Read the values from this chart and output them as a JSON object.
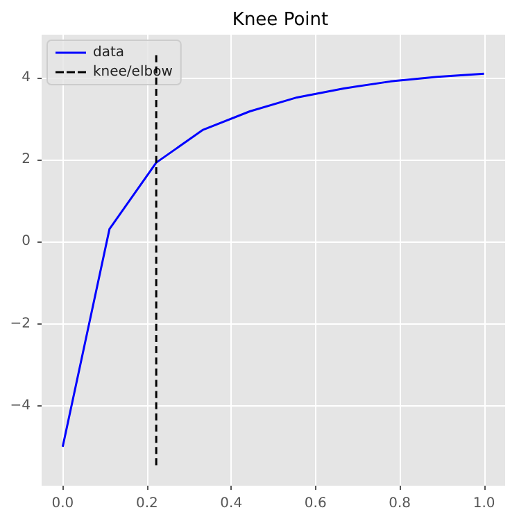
{
  "chart_data": {
    "type": "line",
    "title": "Knee Point",
    "series": [
      {
        "name": "data",
        "color": "#0000ff",
        "line_style": "solid",
        "x": [
          0,
          0.111,
          0.222,
          0.333,
          0.444,
          0.556,
          0.667,
          0.778,
          0.889,
          1.0
        ],
        "values": [
          -5,
          0.31,
          1.93,
          2.73,
          3.18,
          3.52,
          3.74,
          3.91,
          4.02,
          4.1
        ]
      },
      {
        "name": "knee/elbow",
        "color": "#000000",
        "line_style": "dashed",
        "x": [
          0.222,
          0.222
        ],
        "values": [
          -5.45,
          4.55
        ]
      }
    ],
    "xlim": [
      -0.05,
      1.05
    ],
    "xticks": [
      {
        "value": 0,
        "label": "0.0"
      },
      {
        "value": 0.2,
        "label": "0.2"
      },
      {
        "value": 0.4,
        "label": "0.4"
      },
      {
        "value": 0.6,
        "label": "0.6"
      },
      {
        "value": 0.8,
        "label": "0.8"
      },
      {
        "value": 1,
        "label": "1.0"
      }
    ],
    "ylim": [
      -5.95,
      5.05
    ],
    "yticks": [
      {
        "value": -4,
        "label": "−4"
      },
      {
        "value": -2,
        "label": "−2"
      },
      0,
      2,
      4
    ],
    "grid": true,
    "legend": "top left",
    "marker": "none"
  }
}
